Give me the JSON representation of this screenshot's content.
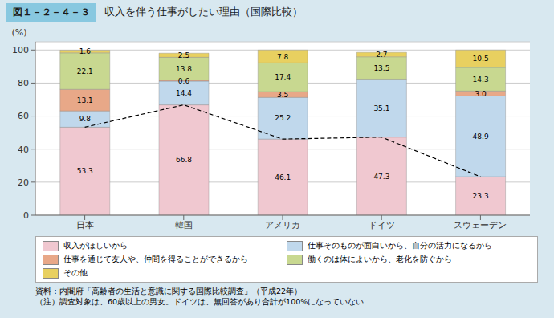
{
  "chart_data": {
    "type": "bar",
    "title": "収入を伴う仕事がしたい理由（国際比較）",
    "annotations": [
      "図１－２－４－３",
      "資料：内閣府「高齢者の生活と意識に関する国際比較調査」（平成22年）",
      "（注）調査対象は、60歳以上の男女。ドイツは、無回答があり合計が100%になっていない"
    ],
    "y_label": "(%)",
    "categories": [
      "日本",
      "韓国",
      "アメリカ",
      "ドイツ",
      "スウェーデン"
    ],
    "series": [
      {
        "name": "収入がほしいから",
        "color": "#f0c8d0",
        "values": [
          53.3,
          66.8,
          46.1,
          47.3,
          23.3
        ]
      },
      {
        "name": "仕事そのものが面白いから、自分の活力になるから",
        "color": "#c0d8ec",
        "values": [
          9.8,
          14.4,
          25.2,
          35.1,
          48.9
        ]
      },
      {
        "name": "仕事を通じて友人や、仲間を得ることができるから",
        "color": "#e8a888",
        "values": [
          13.1,
          0.6,
          3.5,
          0.0,
          3.0
        ]
      },
      {
        "name": "働くのは体によいから、老化を防ぐから",
        "color": "#c8d890",
        "values": [
          22.1,
          13.8,
          17.4,
          13.5,
          14.3
        ]
      },
      {
        "name": "その他",
        "color": "#e8d060",
        "values": [
          1.6,
          2.5,
          7.8,
          2.7,
          10.5
        ]
      },
      {
        "name": "収入がほしいから",
        "type": "line",
        "line_style": "dashed",
        "color": "#000000",
        "values": [
          53.3,
          66.8,
          46.1,
          47.3,
          23.3
        ]
      }
    ],
    "ylim": [
      0,
      105
    ],
    "yticks": [
      0,
      20,
      40,
      60,
      80,
      100
    ],
    "stacked": true,
    "data_labels": true,
    "grid": true
  }
}
